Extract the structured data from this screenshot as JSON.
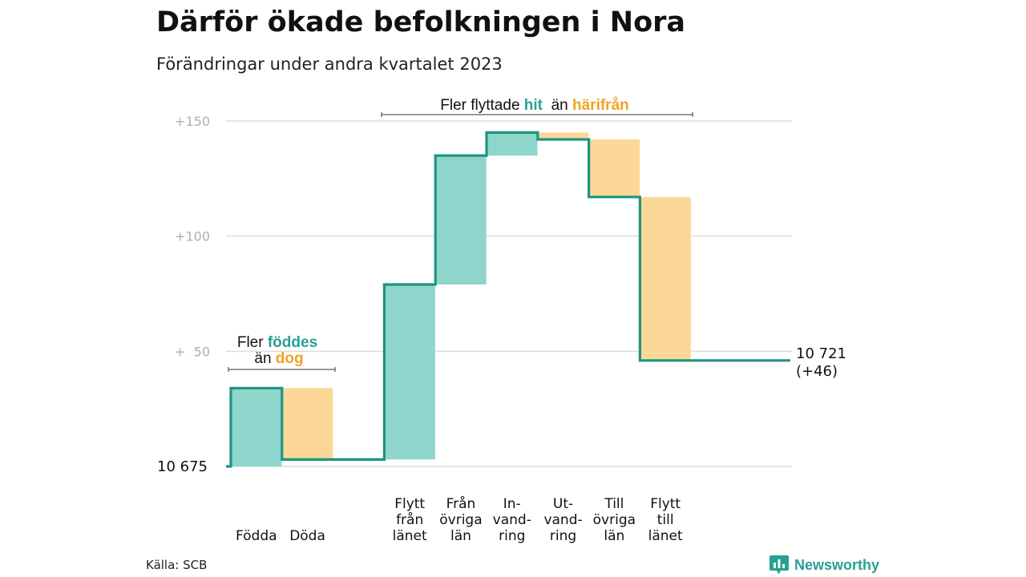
{
  "title": "Därför ökade befolkningen i Nora",
  "subtitle": "Förändringar under andra kvartalet 2023",
  "source": "Källa: SCB",
  "brand": {
    "name": "Newsworthy",
    "icon": "bar-chart-icon"
  },
  "colors": {
    "increase_fill": "#8ed6cc",
    "decrease_fill": "#fbd897",
    "line": "#1e9483",
    "increase_text": "#26a193",
    "decrease_text": "#f0a321",
    "grid": "#dddddd",
    "tick_text": "#b0b0b0"
  },
  "chart_data": {
    "type": "waterfall",
    "base_label": "10 675",
    "base": 10675,
    "y_ticks": [
      {
        "value": 150,
        "label": "+150"
      },
      {
        "value": 100,
        "label": "+100"
      },
      {
        "value": 50,
        "label": "+  50"
      }
    ],
    "ylim": [
      0,
      150
    ],
    "steps": [
      {
        "label": "Födda",
        "change": 34,
        "type": "increase"
      },
      {
        "label": "Döda",
        "change": -31,
        "type": "decrease"
      },
      {
        "label": "",
        "change": 0,
        "type": "spacer"
      },
      {
        "label": "Flytt\nfrån\nlänet",
        "change": 76,
        "type": "increase"
      },
      {
        "label": "Från\növriga\nlän",
        "change": 56,
        "type": "increase"
      },
      {
        "label": "In-\nvand-\nring",
        "change": 10,
        "type": "increase"
      },
      {
        "label": "Ut-\nvand-\nring",
        "change": -3,
        "type": "decrease"
      },
      {
        "label": "Till\növriga\nlän",
        "change": -25,
        "type": "decrease"
      },
      {
        "label": "Flytt\ntill\nlänet",
        "change": -71,
        "type": "decrease"
      }
    ],
    "end_label": "10 721",
    "end_change_label": "(+46)",
    "end_value": 10721,
    "annotations": [
      {
        "pre": "Fler",
        "word1": "föddes",
        "mid": "än",
        "word2": "dog"
      },
      {
        "pre": "Fler flyttade",
        "word1": "hit",
        "mid": "än",
        "word2": "härifrån"
      }
    ]
  }
}
